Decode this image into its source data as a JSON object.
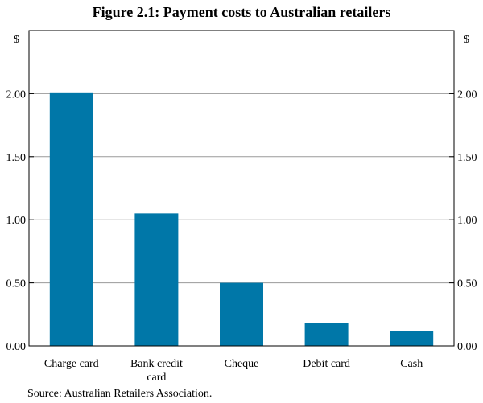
{
  "title": "Figure 2.1:  Payment costs to Australian retailers",
  "source": "Source:  Australian Retailers Association.",
  "colors": {
    "bar": "#0077a8",
    "grid": "#9a9a9a",
    "frame": "#000000"
  },
  "chart_data": {
    "type": "bar",
    "title": "Figure 2.1:  Payment costs to Australian retailers",
    "ylabel_left": "$",
    "ylabel_right": "$",
    "categories": [
      [
        "Charge card"
      ],
      [
        "Bank credit",
        "card"
      ],
      [
        "Cheque"
      ],
      [
        "Debit card"
      ],
      [
        "Cash"
      ]
    ],
    "values": [
      2.01,
      1.05,
      0.5,
      0.18,
      0.12
    ],
    "ylim": [
      0,
      2.5
    ],
    "yticks": [
      0,
      0.5,
      1.0,
      1.5,
      2.0
    ],
    "ytick_labels": [
      "0.00",
      "0.50",
      "1.00",
      "1.50",
      "2.00"
    ],
    "grid": true,
    "legend": "none"
  }
}
